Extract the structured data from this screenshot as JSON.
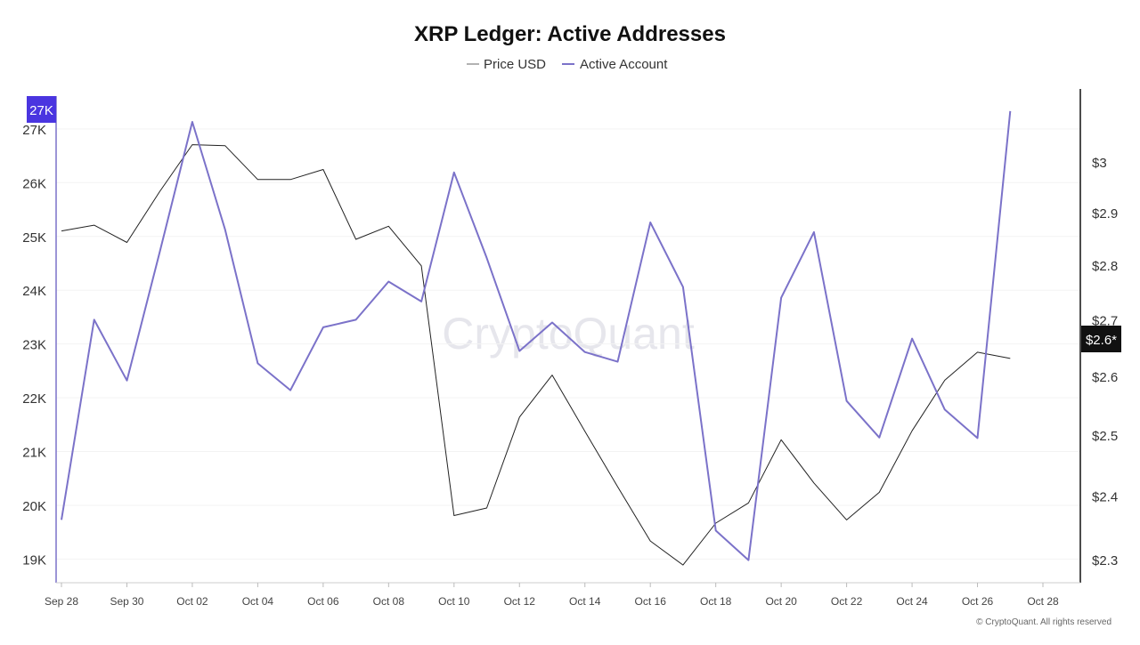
{
  "chart_data": {
    "type": "line",
    "title": "XRP Ledger: Active Addresses",
    "watermark": "CryptoQuant",
    "footer": "© CryptoQuant. All rights reserved",
    "x": [
      "Sep 28",
      "Sep 29",
      "Sep 30",
      "Oct 01",
      "Oct 02",
      "Oct 03",
      "Oct 04",
      "Oct 05",
      "Oct 06",
      "Oct 07",
      "Oct 08",
      "Oct 09",
      "Oct 10",
      "Oct 11",
      "Oct 12",
      "Oct 13",
      "Oct 14",
      "Oct 15",
      "Oct 16",
      "Oct 17",
      "Oct 18",
      "Oct 19",
      "Oct 20",
      "Oct 21",
      "Oct 22",
      "Oct 23",
      "Oct 24",
      "Oct 25",
      "Oct 26",
      "Oct 27"
    ],
    "x_ticks": [
      "Sep 28",
      "Sep 30",
      "Oct 02",
      "Oct 04",
      "Oct 06",
      "Oct 08",
      "Oct 10",
      "Oct 12",
      "Oct 14",
      "Oct 16",
      "Oct 18",
      "Oct 20",
      "Oct 22",
      "Oct 24",
      "Oct 26",
      "Oct 28"
    ],
    "x_range": [
      "Sep 28",
      "Oct 28"
    ],
    "legend_placement": "top-center",
    "grid": true,
    "series": [
      {
        "name": "Price USD",
        "axis": "right",
        "color": "#222222",
        "values": [
          2.865,
          2.876,
          2.843,
          2.941,
          3.035,
          3.033,
          2.965,
          2.965,
          2.985,
          2.849,
          2.874,
          2.799,
          2.369,
          2.381,
          2.53,
          2.602,
          2.506,
          2.415,
          2.329,
          2.292,
          2.357,
          2.389,
          2.492,
          2.421,
          2.362,
          2.406,
          2.507,
          2.593,
          2.642,
          2.631
        ]
      },
      {
        "name": "Active Account",
        "axis": "left",
        "color": "#7b72c9",
        "values": [
          19730,
          23450,
          22320,
          24700,
          27130,
          25130,
          22640,
          22140,
          23310,
          23450,
          24160,
          23790,
          26190,
          24600,
          22870,
          23400,
          22850,
          22670,
          25260,
          24060,
          19530,
          18980,
          23860,
          25080,
          21940,
          21260,
          23100,
          21780,
          21250,
          27330
        ]
      }
    ],
    "y_left": {
      "ticks": [
        "19K",
        "20K",
        "21K",
        "22K",
        "23K",
        "24K",
        "25K",
        "26K",
        "27K"
      ],
      "tick_values": [
        19000,
        20000,
        21000,
        22000,
        23000,
        24000,
        25000,
        26000,
        27000
      ],
      "range": [
        18560,
        27610
      ],
      "scale": "linear",
      "marker_label": "27K",
      "marker_color": "#4a35e0"
    },
    "y_right": {
      "ticks": [
        "$2.3",
        "$2.4",
        "$2.5",
        "$2.6",
        "$2.7",
        "$2.8",
        "$2.9",
        "$3"
      ],
      "tick_values": [
        2.3,
        2.4,
        2.5,
        2.6,
        2.7,
        2.8,
        2.9,
        3.0
      ],
      "range": [
        2.265,
        3.135
      ],
      "scale": "log",
      "marker_label": "$2.6*",
      "marker_color": "#111111"
    }
  }
}
